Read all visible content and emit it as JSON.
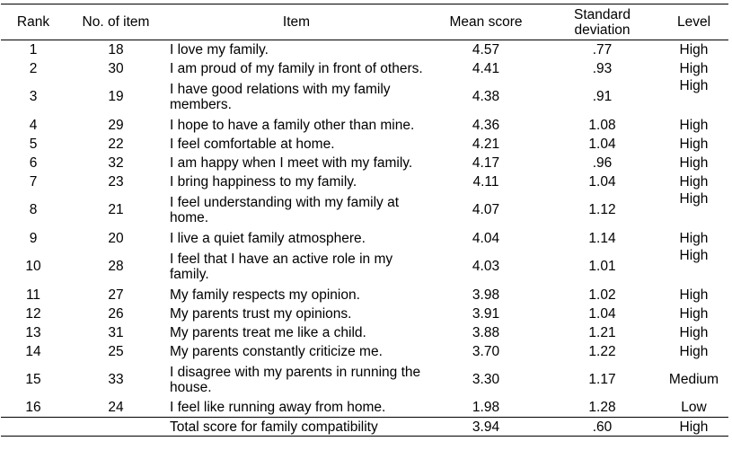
{
  "headers": {
    "rank": "Rank",
    "no": "No. of item",
    "item": "Item",
    "mean": "Mean score",
    "sd_line1": "Standard",
    "sd_line2": "deviation",
    "level": "Level"
  },
  "rows": [
    {
      "rank": "1",
      "no": "18",
      "item": "I love my family.",
      "mean": "4.57",
      "sd": ".77",
      "level": "High"
    },
    {
      "rank": "2",
      "no": "30",
      "item": "I am proud of my family in front of others.",
      "mean": "4.41",
      "sd": ".93",
      "level": "High"
    },
    {
      "rank": "3",
      "no": "19",
      "item": "I have good relations with my family members.",
      "mean": "4.38",
      "sd": ".91",
      "level": "High"
    },
    {
      "rank": "4",
      "no": "29",
      "item": "I hope to have a family other than mine.",
      "mean": "4.36",
      "sd": "1.08",
      "level": "High"
    },
    {
      "rank": "5",
      "no": "22",
      "item": "I feel comfortable at home.",
      "mean": "4.21",
      "sd": "1.04",
      "level": "High"
    },
    {
      "rank": "6",
      "no": "32",
      "item": "I am happy when I meet with my family.",
      "mean": "4.17",
      "sd": ".96",
      "level": "High"
    },
    {
      "rank": "7",
      "no": "23",
      "item": "I bring happiness to my family.",
      "mean": "4.11",
      "sd": "1.04",
      "level": "High"
    },
    {
      "rank": "8",
      "no": "21",
      "item": "I feel understanding with my family at home.",
      "mean": "4.07",
      "sd": "1.12",
      "level": "High"
    },
    {
      "rank": "9",
      "no": "20",
      "item": "I live a quiet family atmosphere.",
      "mean": "4.04",
      "sd": "1.14",
      "level": "High"
    },
    {
      "rank": "10",
      "no": "28",
      "item": "I feel that I have an active role in my family.",
      "mean": "4.03",
      "sd": "1.01",
      "level": "High"
    },
    {
      "rank": "11",
      "no": "27",
      "item": "My family respects my opinion.",
      "mean": "3.98",
      "sd": "1.02",
      "level": "High"
    },
    {
      "rank": "12",
      "no": "26",
      "item": "My parents trust my opinions.",
      "mean": "3.91",
      "sd": "1.04",
      "level": "High"
    },
    {
      "rank": "13",
      "no": "31",
      "item": "My parents treat me like a child.",
      "mean": "3.88",
      "sd": "1.21",
      "level": "High"
    },
    {
      "rank": "14",
      "no": "25",
      "item": "My parents constantly criticize me.",
      "mean": "3.70",
      "sd": "1.22",
      "level": "High"
    },
    {
      "rank": "15",
      "no": "33",
      "item": "I disagree with my parents in running the house.",
      "mean": "3.30",
      "sd": "1.17",
      "level": "Medium"
    },
    {
      "rank": "16",
      "no": "24",
      "item": "I feel like running away from home.",
      "mean": "1.98",
      "sd": "1.28",
      "level": "Low"
    }
  ],
  "total": {
    "item": "Total score for family compatibility",
    "mean": "3.94",
    "sd": ".60",
    "level": "High"
  }
}
